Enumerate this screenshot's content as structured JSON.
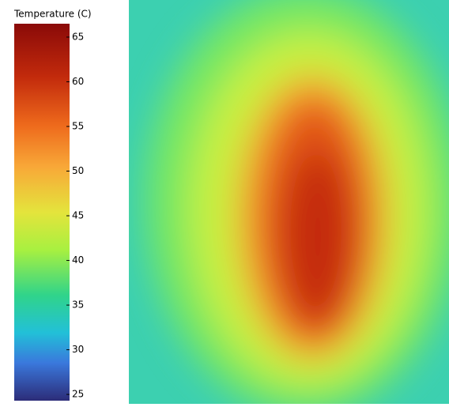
{
  "colorbar": {
    "title": "Temperature (C)",
    "range": [
      24.3,
      66.5
    ],
    "ticks": [
      65,
      60,
      55,
      50,
      45,
      40,
      35,
      30,
      25
    ]
  }
}
